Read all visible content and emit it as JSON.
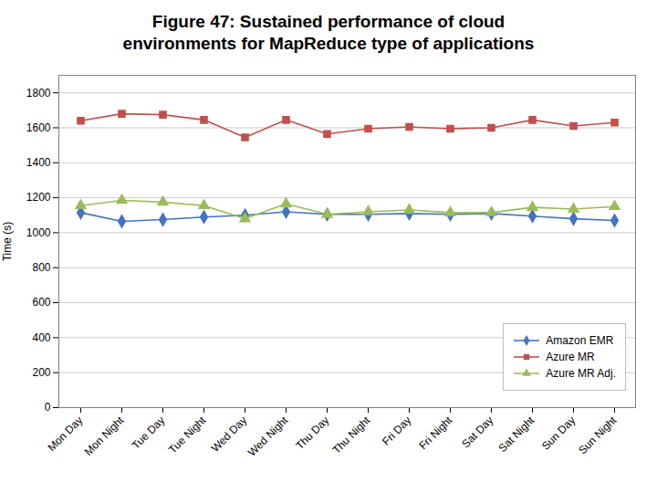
{
  "chart_data": {
    "type": "line",
    "title": "Figure 47: Sustained performance of cloud\nenvironments for MapReduce type of applications",
    "y_label": "Time (s)",
    "categories": [
      "Mon Day",
      "Mon Night",
      "Tue Day",
      "Tue Night",
      "Wed Day",
      "Wed Night",
      "Thu Day",
      "Thu Night",
      "Fri Day",
      "Fri Night",
      "Sat Day",
      "Sat Night",
      "Sun Day",
      "Sun Night"
    ],
    "series": [
      {
        "name": "Amazon EMR",
        "color": "#4472C4",
        "marker": "diamond",
        "values": [
          1115,
          1065,
          1075,
          1090,
          1100,
          1120,
          1105,
          1105,
          1110,
          1105,
          1110,
          1095,
          1080,
          1070
        ]
      },
      {
        "name": "Azure MR",
        "color": "#C0504D",
        "marker": "square",
        "values": [
          1640,
          1680,
          1675,
          1645,
          1545,
          1645,
          1565,
          1595,
          1605,
          1595,
          1600,
          1645,
          1610,
          1630
        ]
      },
      {
        "name": "Azure MR Adj.",
        "color": "#9BBB59",
        "marker": "triangle",
        "values": [
          1155,
          1185,
          1175,
          1155,
          1080,
          1165,
          1105,
          1120,
          1130,
          1115,
          1115,
          1145,
          1135,
          1150
        ]
      }
    ],
    "ylim": [
      0,
      1900
    ],
    "yticks": [
      0,
      200,
      400,
      600,
      800,
      1000,
      1200,
      1400,
      1600,
      1800
    ],
    "grid": true,
    "legend": "lower right"
  }
}
